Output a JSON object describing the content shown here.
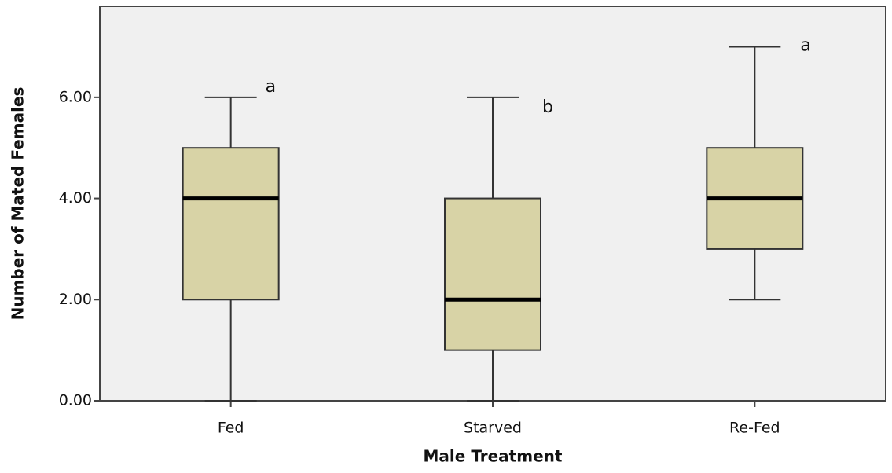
{
  "chart_data": {
    "type": "box",
    "x_label": "Male Treatment",
    "y_label": "Number of Mated Females",
    "categories": [
      "Fed",
      "Starved",
      "Re-Fed"
    ],
    "boxes": [
      {
        "min": 0,
        "q1": 2,
        "median": 4,
        "q3": 5,
        "max": 6
      },
      {
        "min": 0,
        "q1": 1,
        "median": 2,
        "q3": 4,
        "max": 6
      },
      {
        "min": 2,
        "q1": 3,
        "median": 4,
        "q3": 5,
        "max": 7
      }
    ],
    "annotations": [
      "a",
      "b",
      "a"
    ],
    "color": "#d8d3a6",
    "ylim": [
      0,
      7.8
    ],
    "yticks": [
      {
        "value": 0,
        "label": "0.00"
      },
      {
        "value": 2,
        "label": "2.00"
      },
      {
        "value": 4,
        "label": "4.00"
      },
      {
        "value": 6,
        "label": "6.00"
      }
    ]
  }
}
